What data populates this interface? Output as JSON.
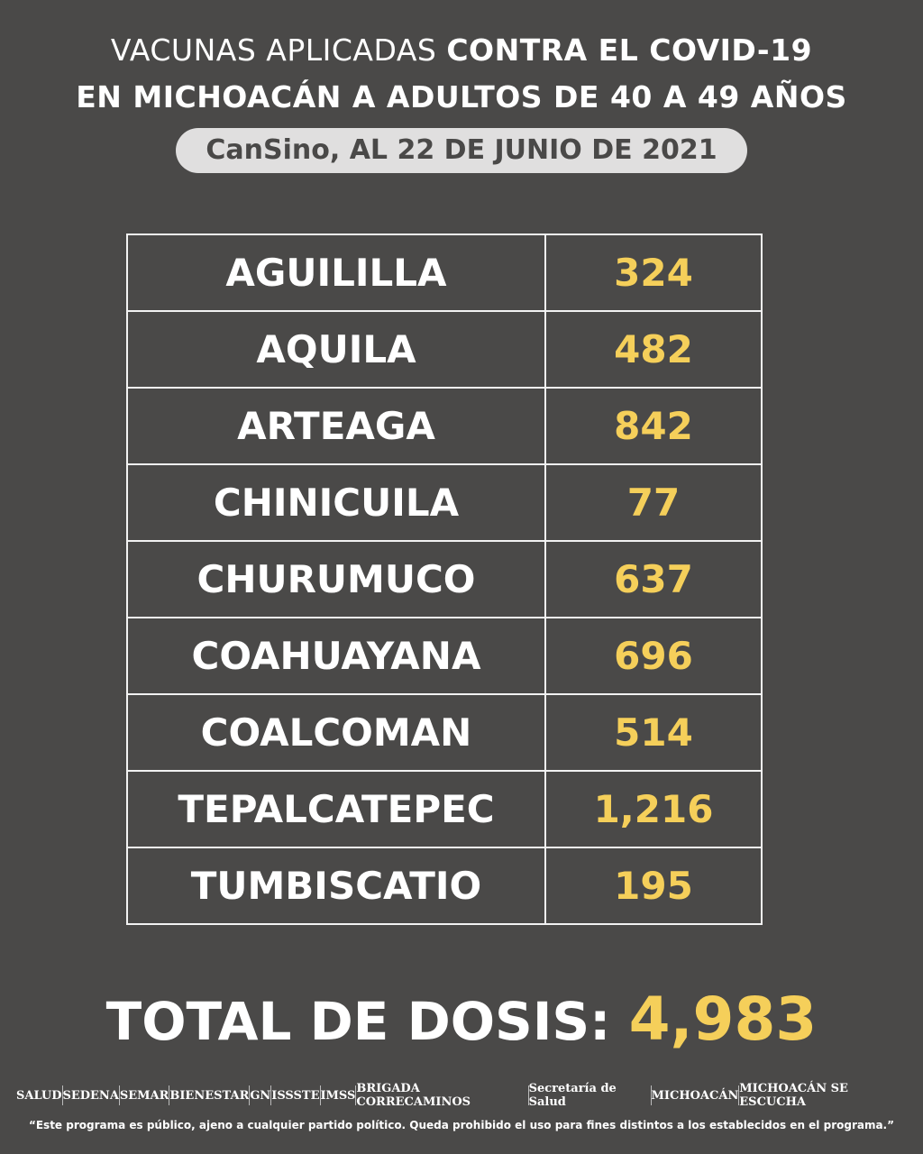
{
  "header": {
    "title_line1_light": "VACUNAS APLICADAS ",
    "title_line1_bold": "CONTRA EL COVID-19",
    "title_line2": "EN MICHOACÁN A ADULTOS DE 40 A 49 AÑOS",
    "subtitle": "CanSino, AL 22 DE JUNIO DE 2021"
  },
  "table": {
    "rows": [
      {
        "municipio": "AGUILILLA",
        "dosis": "324"
      },
      {
        "municipio": "AQUILA",
        "dosis": "482"
      },
      {
        "municipio": "ARTEAGA",
        "dosis": "842"
      },
      {
        "municipio": "CHINICUILA",
        "dosis": "77"
      },
      {
        "municipio": "CHURUMUCO",
        "dosis": "637"
      },
      {
        "municipio": "COAHUAYANA",
        "dosis": "696"
      },
      {
        "municipio": "COALCOMAN",
        "dosis": "514"
      },
      {
        "municipio": "TEPALCATEPEC",
        "dosis": "1,216"
      },
      {
        "municipio": "TUMBISCATIO",
        "dosis": "195"
      }
    ]
  },
  "total": {
    "label": "TOTAL DE DOSIS: ",
    "value": "4,983"
  },
  "footer": {
    "logos": [
      "SALUD",
      "SEDENA",
      "SEMAR",
      "BIENESTAR",
      "GN",
      "ISSSTE",
      "IMSS",
      "BRIGADA CORRECAMINOS",
      "Secretaría de Salud",
      "MICHOACÁN",
      "MICHOACÁN SE ESCUCHA"
    ],
    "disclaimer": "“Este programa es público, ajeno a cualquier partido político. Queda prohibido el uso para fines distintos a los establecidos en el programa.”"
  },
  "colors": {
    "background": "#4a4948",
    "accent": "#f5cf5a",
    "pill": "#e0dfdf"
  }
}
